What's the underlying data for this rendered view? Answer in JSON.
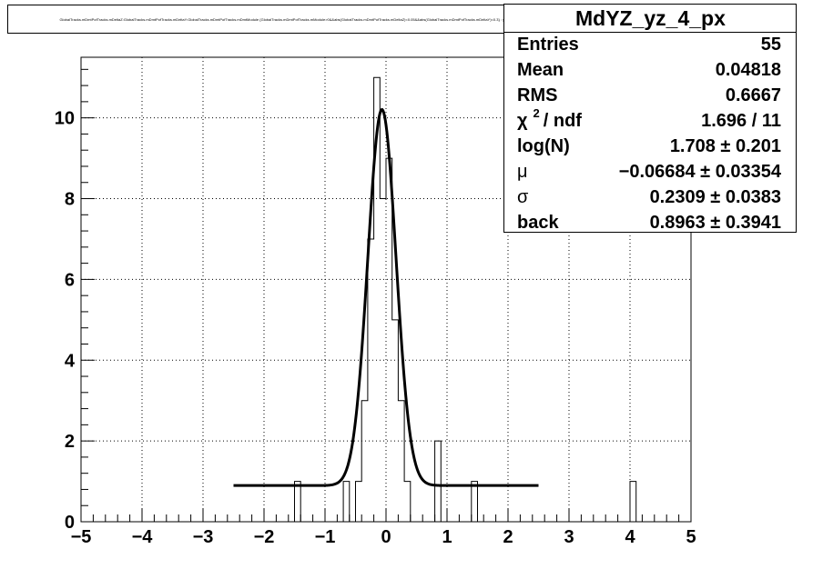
{
  "chart_data": {
    "type": "bar",
    "title": "GlobalTracks.mDmtPofTracks.mDeltaZ:GlobalTracks.mDmtPofTracks.mDeltaY:GlobalTracks.mDmtPofTracks.mDmtModule {GlobalTracks.mDmtPofTracks.mModule>0&&abs(GlobalTracks.mDmtPofTracks.mDeltaZ)<0.05&&abs(GlobalTracks.mDmtPofTracks.mDeltaY)<0.3} : yz projection",
    "xlim": [
      -5,
      5
    ],
    "ylim": [
      0,
      11.5
    ],
    "x_ticks": [
      -5,
      -4,
      -3,
      -2,
      -1,
      0,
      1,
      2,
      3,
      4,
      5
    ],
    "x_tick_labels": [
      "−5",
      "−4",
      "−3",
      "−2",
      "−1",
      "0",
      "1",
      "2",
      "3",
      "4",
      "5"
    ],
    "y_ticks": [
      0,
      2,
      4,
      6,
      8,
      10
    ],
    "y_tick_labels": [
      "0",
      "2",
      "4",
      "6",
      "8",
      "10"
    ],
    "grid": true,
    "bin_width": 0.1,
    "bins": [
      {
        "x": -1.5,
        "count": 1
      },
      {
        "x": -0.7,
        "count": 1
      },
      {
        "x": -0.5,
        "count": 1
      },
      {
        "x": -0.4,
        "count": 3
      },
      {
        "x": -0.3,
        "count": 7
      },
      {
        "x": -0.2,
        "count": 11
      },
      {
        "x": -0.1,
        "count": 8
      },
      {
        "x": 0.0,
        "count": 9
      },
      {
        "x": 0.1,
        "count": 5
      },
      {
        "x": 0.2,
        "count": 3
      },
      {
        "x": 0.3,
        "count": 1
      },
      {
        "x": 0.8,
        "count": 2
      },
      {
        "x": 1.4,
        "count": 1
      },
      {
        "x": 4.0,
        "count": 1
      }
    ],
    "fit": {
      "range": [
        -2.5,
        2.5
      ],
      "amplitude": 9.31,
      "mu": -0.06684,
      "sigma": 0.2309,
      "background": 0.8963
    }
  },
  "stats": {
    "name": "MdYZ_yz_4_px",
    "rows": [
      {
        "key": "Entries",
        "value": "55"
      },
      {
        "key": "Mean",
        "value": "0.04818"
      },
      {
        "key": "RMS",
        "value": "0.6667"
      },
      {
        "key": "/ ndf",
        "value": "1.696 / 11",
        "chi": "χ",
        "sup": "2"
      },
      {
        "key": "log(N)",
        "value": "1.708 ± 0.201"
      },
      {
        "key": "μ",
        "value": "−0.06684 ± 0.03354"
      },
      {
        "key": "σ",
        "value": "0.2309 ± 0.0383"
      },
      {
        "key": "back",
        "value": "0.8963 ± 0.3941"
      }
    ]
  }
}
